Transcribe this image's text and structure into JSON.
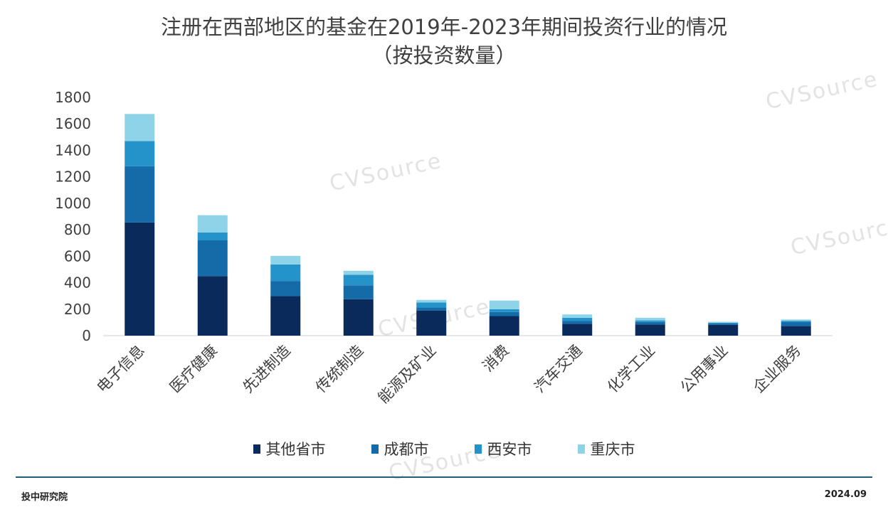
{
  "title": {
    "line1": "注册在西部地区的基金在2019年-2023年期间投资行业的情况",
    "line2": "（按投资数量）"
  },
  "footer": {
    "source": "投中研究院",
    "date": "2024.09"
  },
  "watermark": "CVSource",
  "chart_data": {
    "type": "stacked-bar",
    "title": "注册在西部地区的基金在2019年-2023年期间投资行业的情况（按投资数量）",
    "xlabel": "",
    "ylabel": "",
    "ylim": [
      0,
      1800
    ],
    "yticks": [
      0,
      200,
      400,
      600,
      800,
      1000,
      1200,
      1400,
      1600,
      1800
    ],
    "categories": [
      "电子信息",
      "医疗健康",
      "先进制造",
      "传统制造",
      "能源及矿业",
      "消费",
      "汽车交通",
      "化学工业",
      "公用事业",
      "企业服务"
    ],
    "series": [
      {
        "name": "其他省市",
        "color": "#0a2a5c",
        "values": [
          855,
          450,
          298,
          275,
          190,
          148,
          90,
          85,
          82,
          72
        ]
      },
      {
        "name": "成都市",
        "color": "#156aa8",
        "values": [
          425,
          270,
          115,
          105,
          22,
          30,
          20,
          18,
          10,
          30
        ]
      },
      {
        "name": "西安市",
        "color": "#2493c9",
        "values": [
          190,
          60,
          125,
          80,
          38,
          22,
          25,
          12,
          5,
          10
        ]
      },
      {
        "name": "重庆市",
        "color": "#8fd3e8",
        "values": [
          205,
          130,
          65,
          30,
          20,
          65,
          25,
          20,
          8,
          10
        ]
      }
    ],
    "legend_position": "bottom",
    "grid": false
  }
}
